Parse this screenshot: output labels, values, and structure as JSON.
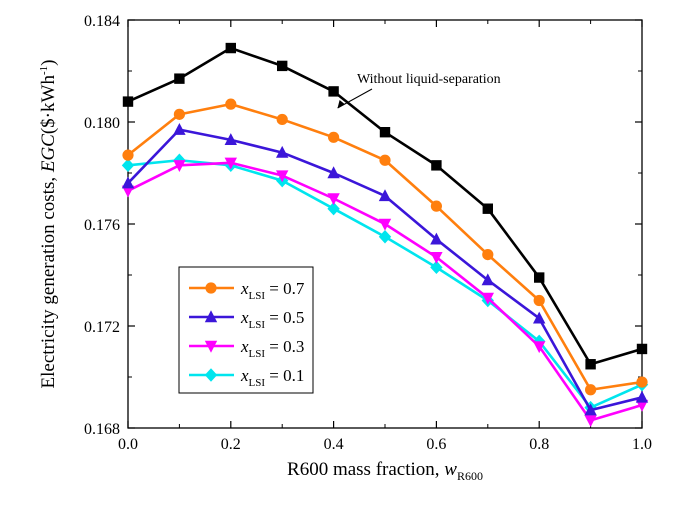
{
  "chart_data": {
    "type": "line",
    "xlabel": {
      "main": "R600 mass fraction, ",
      "var": "w",
      "sub": "R600"
    },
    "ylabel": {
      "main": "Electricity generation costs, ",
      "var": "EGC",
      "unit_pre": "($·kWh",
      "unit_sup": "-1",
      "unit_post": ")"
    },
    "xlim": [
      0.0,
      1.0
    ],
    "ylim": [
      0.168,
      0.184
    ],
    "xticks": [
      "0.0",
      "0.2",
      "0.4",
      "0.6",
      "0.8",
      "1.0"
    ],
    "yticks": [
      "0.168",
      "0.172",
      "0.176",
      "0.180",
      "0.184"
    ],
    "x": [
      0.0,
      0.1,
      0.2,
      0.3,
      0.4,
      0.5,
      0.6,
      0.7,
      0.8,
      0.9,
      1.0
    ],
    "grid": false,
    "legend_position": "lower-left",
    "series": [
      {
        "name": "Without liquid-separation",
        "color": "#000000",
        "marker": "square",
        "values": [
          0.1808,
          0.1817,
          0.1829,
          0.1822,
          0.1812,
          0.1796,
          0.1783,
          0.1766,
          0.1739,
          0.1705,
          0.1711
        ]
      },
      {
        "name": "x_LSI = 0.7",
        "legend_var": "x",
        "legend_sub": "LSI",
        "legend_val": " = 0.7",
        "color": "#ff7f0e",
        "marker": "circle",
        "values": [
          0.1787,
          0.1803,
          0.1807,
          0.1801,
          0.1794,
          0.1785,
          0.1767,
          0.1748,
          0.173,
          0.1695,
          0.1698
        ]
      },
      {
        "name": "x_LSI = 0.5",
        "legend_var": "x",
        "legend_sub": "LSI",
        "legend_val": " = 0.5",
        "color": "#3b16d9",
        "marker": "triangle-up",
        "values": [
          0.1776,
          0.1797,
          0.1793,
          0.1788,
          0.178,
          0.1771,
          0.1754,
          0.1738,
          0.1723,
          0.1687,
          0.1692
        ]
      },
      {
        "name": "x_LSI = 0.3",
        "legend_var": "x",
        "legend_sub": "LSI",
        "legend_val": " = 0.3",
        "color": "#ff00ff",
        "marker": "triangle-down",
        "values": [
          0.1773,
          0.1783,
          0.1784,
          0.1779,
          0.177,
          0.176,
          0.1747,
          0.1731,
          0.1712,
          0.1683,
          0.1689
        ]
      },
      {
        "name": "x_LSI = 0.1",
        "legend_var": "x",
        "legend_sub": "LSI",
        "legend_val": " = 0.1",
        "color": "#00e5ee",
        "marker": "diamond",
        "values": [
          0.1783,
          0.1785,
          0.1783,
          0.1777,
          0.1766,
          0.1755,
          0.1743,
          0.173,
          0.1714,
          0.1688,
          0.1697
        ]
      }
    ],
    "annotation": {
      "text": "Without liquid-separation",
      "points_to_x": 0.4,
      "points_to_y": 0.18
    }
  }
}
